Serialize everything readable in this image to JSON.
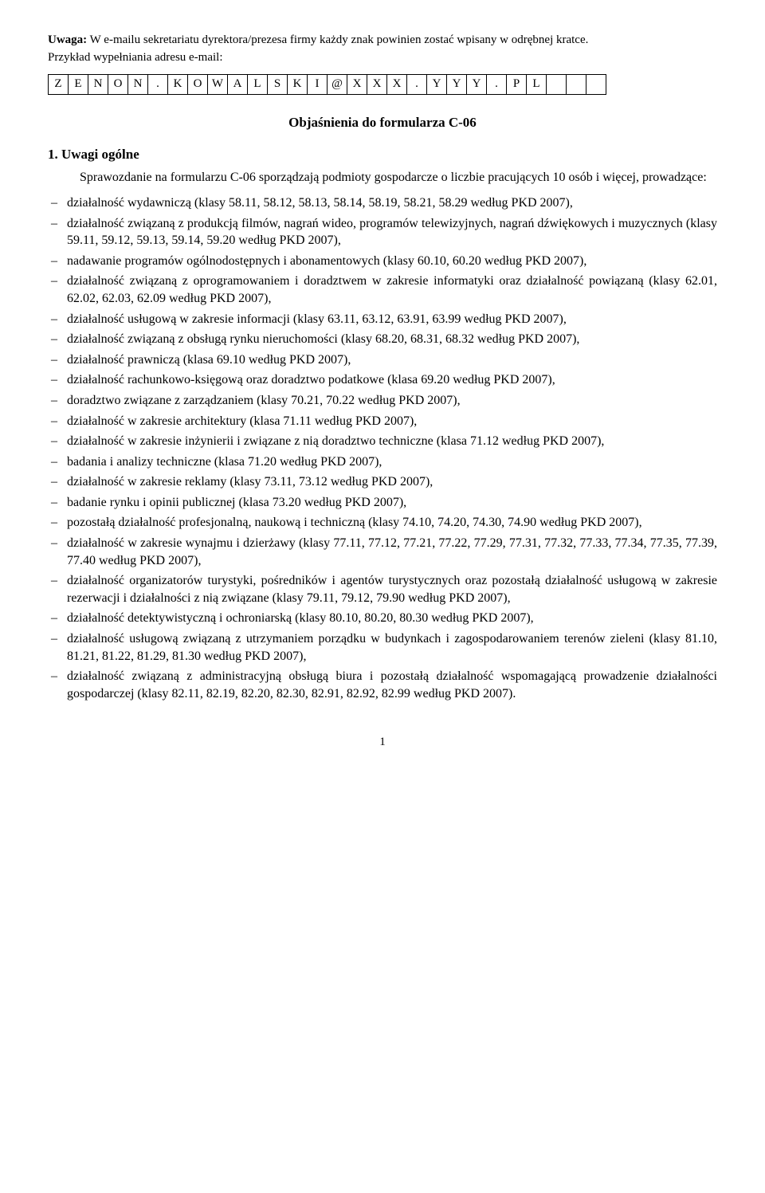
{
  "note": {
    "label": "Uwaga:",
    "text": " W e-mailu sekretariatu dyrektora/prezesa firmy każdy znak powinien zostać wpisany w odrębnej kratce.",
    "example_label": "Przykład wypełniania adresu e-mail:"
  },
  "email_boxes": [
    "Z",
    "E",
    "N",
    "O",
    "N",
    ".",
    "K",
    "O",
    "W",
    "A",
    "L",
    "S",
    "K",
    "I",
    "@",
    "X",
    "X",
    "X",
    ".",
    "Y",
    "Y",
    "Y",
    ".",
    "P",
    "L",
    "",
    "",
    ""
  ],
  "title": "Objaśnienia do formularza C-06",
  "section1": {
    "heading": "1. Uwagi ogólne",
    "intro": "Sprawozdanie na formularzu C-06 sporządzają podmioty gospodarcze o liczbie pracujących 10 osób i więcej, prowadzące:"
  },
  "items": [
    "działalność wydawniczą (klasy 58.11, 58.12, 58.13, 58.14, 58.19, 58.21, 58.29 według PKD 2007),",
    "działalność związaną z produkcją filmów, nagrań wideo, programów telewizyjnych, nagrań dźwiękowych i muzycznych (klasy 59.11, 59.12, 59.13, 59.14, 59.20 według PKD 2007),",
    "nadawanie programów ogólnodostępnych i abonamentowych (klasy 60.10, 60.20 według PKD 2007),",
    "działalność związaną z oprogramowaniem i doradztwem w zakresie informatyki oraz działalność powiązaną (klasy 62.01, 62.02, 62.03, 62.09 według PKD 2007),",
    "działalność usługową w zakresie informacji (klasy 63.11, 63.12, 63.91, 63.99 według PKD 2007),",
    "działalność związaną z obsługą rynku nieruchomości (klasy 68.20, 68.31, 68.32 według PKD 2007),",
    "działalność prawniczą (klasa 69.10 według PKD 2007),",
    "działalność rachunkowo-księgową oraz doradztwo podatkowe (klasa 69.20 według PKD 2007),",
    "doradztwo związane z zarządzaniem (klasy 70.21, 70.22 według PKD 2007),",
    "działalność w zakresie architektury (klasa 71.11 według PKD 2007),",
    "działalność w zakresie inżynierii i związane z nią doradztwo techniczne (klasa 71.12 według PKD 2007),",
    "badania i analizy techniczne (klasa 71.20 według PKD 2007),",
    "działalność w zakresie reklamy (klasy 73.11, 73.12 według PKD 2007),",
    "badanie rynku i opinii publicznej (klasa 73.20 według PKD 2007),",
    "pozostałą działalność profesjonalną, naukową i techniczną (klasy 74.10, 74.20, 74.30, 74.90 według PKD 2007),",
    "działalność w zakresie wynajmu i dzierżawy (klasy 77.11, 77.12, 77.21, 77.22, 77.29, 77.31, 77.32, 77.33, 77.34, 77.35, 77.39, 77.40 według PKD 2007),",
    "działalność organizatorów turystyki, pośredników i agentów turystycznych oraz pozostałą działalność usługową w zakresie rezerwacji i działalności z nią związane (klasy 79.11, 79.12, 79.90 według PKD 2007),",
    "działalność detektywistyczną i ochroniarską (klasy 80.10, 80.20, 80.30 według PKD 2007),",
    "działalność usługową związaną z utrzymaniem porządku w budynkach i zagospodarowaniem terenów zieleni (klasy 81.10, 81.21, 81.22, 81.29, 81.30 według PKD 2007),",
    "działalność związaną z administracyjną obsługą biura i pozostałą działalność wspomagającą prowadzenie działalności gospodarczej (klasy 82.11, 82.19, 82.20, 82.30, 82.91, 82.92, 82.99 według PKD 2007)."
  ],
  "page_number": "1"
}
